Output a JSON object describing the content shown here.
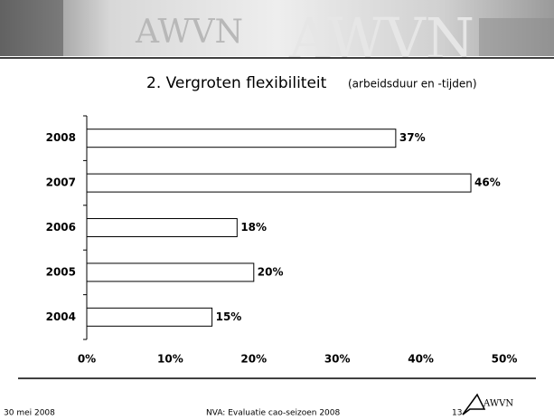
{
  "banner_text": "AWVN",
  "chart_data": {
    "type": "hbar",
    "title": "2. Vergroten flexibiliteit",
    "subtitle": "(arbeidsduur en -tijden)",
    "categories": [
      "2008",
      "2007",
      "2006",
      "2005",
      "2004"
    ],
    "values": [
      37,
      46,
      18,
      20,
      15
    ],
    "value_labels": [
      "37%",
      "46%",
      "18%",
      "20%",
      "15%"
    ],
    "color": "#ffffff",
    "xlim": [
      0,
      50
    ],
    "xticks": [
      {
        "value": 0,
        "label": "0%"
      },
      {
        "value": 10,
        "label": "10%"
      },
      {
        "value": 20,
        "label": "20%"
      },
      {
        "value": 30,
        "label": "30%"
      },
      {
        "value": 40,
        "label": "40%"
      },
      {
        "value": 50,
        "label": "50%"
      }
    ],
    "grid": false
  },
  "footer": {
    "date": "30 mei 2008",
    "text": "NVA: Evaluatie cao-seizoen 2008",
    "page": "13",
    "logo": "AWVN"
  }
}
